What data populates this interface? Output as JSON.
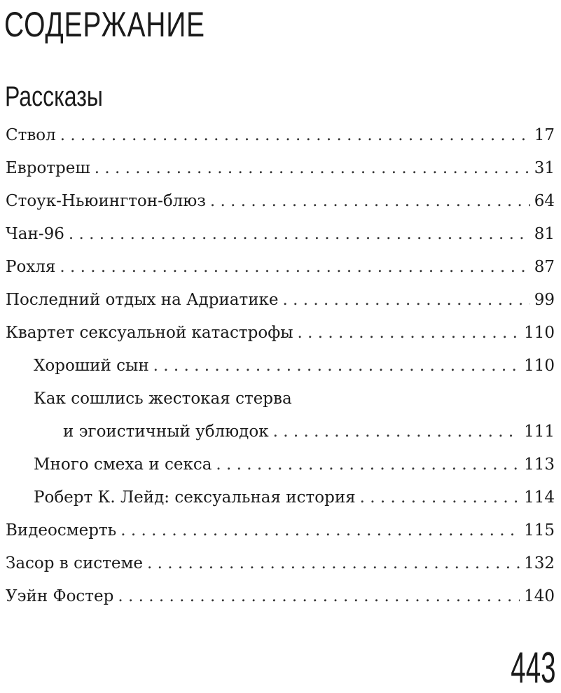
{
  "title": "СОДЕРЖАНИЕ",
  "section": "Рассказы",
  "entries": [
    {
      "label": "Ствол",
      "page": "17",
      "level": 0
    },
    {
      "label": "Евротреш",
      "page": "31",
      "level": 0
    },
    {
      "label": "Стоук-Ньюингтон-блюз",
      "page": "64",
      "level": 0
    },
    {
      "label": "Чан-96",
      "page": "81",
      "level": 0
    },
    {
      "label": "Рохля",
      "page": "87",
      "level": 0
    },
    {
      "label": "Последний отдых на Адриатике",
      "page": "99",
      "level": 0
    },
    {
      "label": "Квартет сексуальной катастрофы",
      "page": "110",
      "level": 0
    },
    {
      "label": "Хороший сын",
      "page": "110",
      "level": 1
    },
    {
      "label": "Как сошлись жестокая стерва",
      "page": "",
      "level": 1
    },
    {
      "label": "и эгоистичный ублюдок",
      "page": "111",
      "level": 2
    },
    {
      "label": "Много смеха и секса",
      "page": "113",
      "level": 1
    },
    {
      "label": "Роберт К. Лейд: сексуальная история",
      "page": "114",
      "level": 1
    },
    {
      "label": "Видеосмерть",
      "page": "115",
      "level": 0
    },
    {
      "label": "Засор в системе",
      "page": "132",
      "level": 0
    },
    {
      "label": "Уэйн Фостер",
      "page": "140",
      "level": 0
    }
  ],
  "folio": "443"
}
